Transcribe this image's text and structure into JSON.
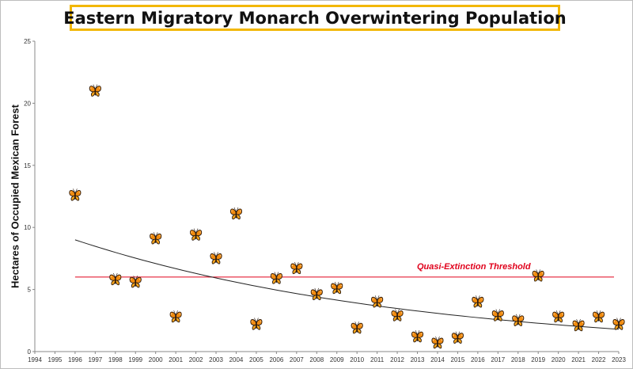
{
  "chart_data": {
    "type": "scatter",
    "title": "Eastern Migratory Monarch Overwintering Population",
    "ylabel": "Hectares of Occupied Mexican Forest",
    "xlabel": "",
    "xlim": [
      1994,
      2023
    ],
    "ylim": [
      0,
      25
    ],
    "x_ticks": [
      "1994",
      "1995",
      "1996",
      "1997",
      "1998",
      "1999",
      "2000",
      "2001",
      "2002",
      "2003",
      "2004",
      "2005",
      "2006",
      "2007",
      "2008",
      "2009",
      "2010",
      "2011",
      "2012",
      "2013",
      "2014",
      "2015",
      "2016",
      "2017",
      "2018",
      "2019",
      "2020",
      "2021",
      "2022",
      "2023"
    ],
    "y_ticks": [
      "0",
      "5",
      "10",
      "15",
      "20",
      "25"
    ],
    "marker": "butterfly",
    "points": [
      {
        "x": 1996,
        "y": 12.6
      },
      {
        "x": 1997,
        "y": 21.0
      },
      {
        "x": 1998,
        "y": 5.8
      },
      {
        "x": 1999,
        "y": 5.6
      },
      {
        "x": 2000,
        "y": 9.1
      },
      {
        "x": 2001,
        "y": 2.8
      },
      {
        "x": 2002,
        "y": 9.4
      },
      {
        "x": 2003,
        "y": 7.5
      },
      {
        "x": 2004,
        "y": 11.1
      },
      {
        "x": 2005,
        "y": 2.2
      },
      {
        "x": 2006,
        "y": 5.9
      },
      {
        "x": 2007,
        "y": 6.7
      },
      {
        "x": 2008,
        "y": 4.6
      },
      {
        "x": 2009,
        "y": 5.1
      },
      {
        "x": 2010,
        "y": 1.9
      },
      {
        "x": 2011,
        "y": 4.0
      },
      {
        "x": 2012,
        "y": 2.9
      },
      {
        "x": 2013,
        "y": 1.2
      },
      {
        "x": 2014,
        "y": 0.7
      },
      {
        "x": 2015,
        "y": 1.1
      },
      {
        "x": 2016,
        "y": 4.0
      },
      {
        "x": 2017,
        "y": 2.9
      },
      {
        "x": 2018,
        "y": 2.5
      },
      {
        "x": 2019,
        "y": 6.1
      },
      {
        "x": 2020,
        "y": 2.8
      },
      {
        "x": 2021,
        "y": 2.1
      },
      {
        "x": 2022,
        "y": 2.8
      },
      {
        "x": 2023,
        "y": 2.2
      }
    ],
    "threshold": {
      "label": "Quasi-Extinction Threshold",
      "y": 6.0,
      "x_start": 1996,
      "x_end": 2023,
      "color": "#e0001b"
    },
    "trendline": {
      "type": "exponential",
      "x_start": 1996,
      "y_start": 9.0,
      "x_end": 2023,
      "y_end": 1.8,
      "color": "#222222"
    },
    "colors": {
      "title_border": "#f2b705",
      "butterfly_wing": "#f28c0f",
      "butterfly_vein": "#2b1a0e"
    }
  }
}
